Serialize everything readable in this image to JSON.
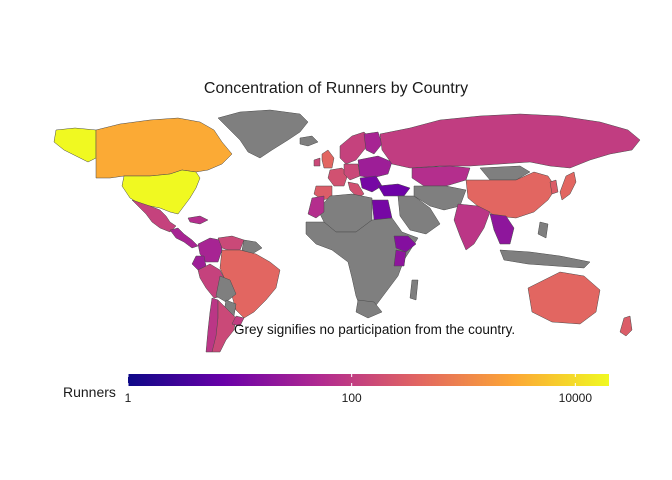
{
  "title": "Concentration of Runners by Country",
  "caption": "Grey signifies no participation from the country.",
  "legend": {
    "title": "Runners",
    "scale": "log10",
    "range": [
      1,
      20000
    ],
    "ticks": [
      {
        "value": 1,
        "label": "1"
      },
      {
        "value": 100,
        "label": "100"
      },
      {
        "value": 10000,
        "label": "10000"
      }
    ],
    "palette": [
      "#0d0887",
      "#6a00a8",
      "#b12a90",
      "#e16462",
      "#fca636",
      "#f0f921"
    ]
  },
  "colors": {
    "no_participation": "#7f7f7f",
    "border": "#4a4a4a"
  },
  "regions": [
    {
      "id": "usa",
      "runners": 20000
    },
    {
      "id": "alaska",
      "runners": 20000
    },
    {
      "id": "canada",
      "runners": 3000
    },
    {
      "id": "greenland",
      "runners": null
    },
    {
      "id": "mexico",
      "runners": 120
    },
    {
      "id": "central-america",
      "runners": 40
    },
    {
      "id": "caribbean",
      "runners": 60
    },
    {
      "id": "colombia",
      "runners": 40
    },
    {
      "id": "venezuela",
      "runners": 150
    },
    {
      "id": "guianas",
      "runners": null
    },
    {
      "id": "ecuador",
      "runners": 30
    },
    {
      "id": "peru",
      "runners": 120
    },
    {
      "id": "brazil",
      "runners": 400
    },
    {
      "id": "bolivia",
      "runners": null
    },
    {
      "id": "paraguay",
      "runners": null
    },
    {
      "id": "chile",
      "runners": 80
    },
    {
      "id": "argentina",
      "runners": 150
    },
    {
      "id": "uruguay",
      "runners": 100
    },
    {
      "id": "iceland",
      "runners": null
    },
    {
      "id": "uk",
      "runners": 400
    },
    {
      "id": "ireland",
      "runners": 150
    },
    {
      "id": "iberia",
      "runners": 300
    },
    {
      "id": "france-benelux",
      "runners": 200
    },
    {
      "id": "germany",
      "runners": 150
    },
    {
      "id": "italy",
      "runners": 200
    },
    {
      "id": "scandinavia",
      "runners": 120
    },
    {
      "id": "finland",
      "runners": 40
    },
    {
      "id": "eastern-europe",
      "runners": 30
    },
    {
      "id": "balkans",
      "runners": 10
    },
    {
      "id": "turkey",
      "runners": 8
    },
    {
      "id": "russia",
      "runners": 100
    },
    {
      "id": "kazakhstan",
      "runners": 60
    },
    {
      "id": "middle-east",
      "runners": null
    },
    {
      "id": "iran-central-asia",
      "runners": null
    },
    {
      "id": "north-africa",
      "runners": null
    },
    {
      "id": "morocco",
      "runners": 60
    },
    {
      "id": "egypt",
      "runners": 10
    },
    {
      "id": "sub-saharan-africa",
      "runners": null
    },
    {
      "id": "ethiopia",
      "runners": 15
    },
    {
      "id": "kenya",
      "runners": 20
    },
    {
      "id": "south-africa",
      "runners": null
    },
    {
      "id": "madagascar",
      "runners": null
    },
    {
      "id": "india",
      "runners": 80
    },
    {
      "id": "china",
      "runners": 400
    },
    {
      "id": "mongolia",
      "runners": null
    },
    {
      "id": "korea",
      "runners": 300
    },
    {
      "id": "japan",
      "runners": 400
    },
    {
      "id": "southeast-asia",
      "runners": 20
    },
    {
      "id": "indonesia",
      "runners": null
    },
    {
      "id": "philippines",
      "runners": null
    },
    {
      "id": "australia",
      "runners": 400
    },
    {
      "id": "new-zealand",
      "runners": 300
    }
  ]
}
